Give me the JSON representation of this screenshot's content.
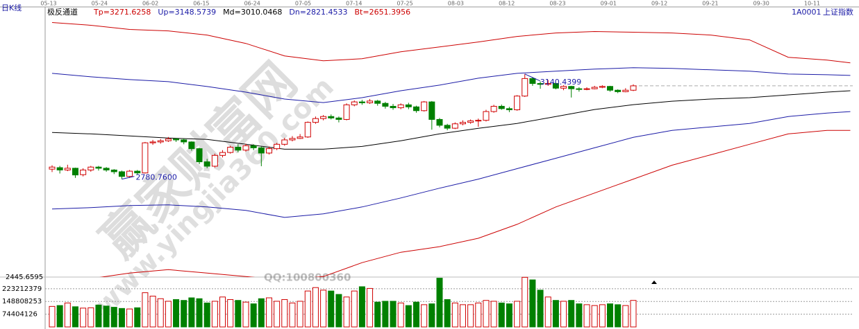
{
  "chart_data": {
    "type": "candlestick",
    "title": "日K线",
    "indicator": "极反通道",
    "code": "1A0001",
    "name": "上证指数",
    "dates": [
      "05-13",
      "05-24",
      "06-02",
      "06-15",
      "06-24",
      "07-05",
      "07-14",
      "07-25",
      "08-03",
      "08-12",
      "08-23",
      "09-01",
      "09-12",
      "09-21",
      "09-30",
      "10-11"
    ],
    "candles": [
      [
        2815,
        2822,
        2828,
        2805
      ],
      [
        2820,
        2812,
        2826,
        2800
      ],
      [
        2812,
        2818,
        2830,
        2808
      ],
      [
        2818,
        2795,
        2820,
        2785
      ],
      [
        2796,
        2812,
        2818,
        2790
      ],
      [
        2812,
        2822,
        2826,
        2806
      ],
      [
        2822,
        2818,
        2826,
        2810
      ],
      [
        2818,
        2812,
        2822,
        2806
      ],
      [
        2812,
        2806,
        2815,
        2798
      ],
      [
        2806,
        2790,
        2810,
        2780.76
      ],
      [
        2790,
        2808,
        2812,
        2785
      ],
      [
        2808,
        2802,
        2812,
        2796
      ],
      [
        2802,
        2905,
        2908,
        2800
      ],
      [
        2905,
        2908,
        2915,
        2898
      ],
      [
        2908,
        2912,
        2918,
        2902
      ],
      [
        2912,
        2918,
        2925,
        2908
      ],
      [
        2918,
        2915,
        2922,
        2908
      ],
      [
        2915,
        2908,
        2920,
        2900
      ],
      [
        2908,
        2885,
        2910,
        2878
      ],
      [
        2885,
        2840,
        2888,
        2832
      ],
      [
        2840,
        2825,
        2850,
        2818
      ],
      [
        2825,
        2862,
        2868,
        2820
      ],
      [
        2862,
        2872,
        2880,
        2855
      ],
      [
        2872,
        2890,
        2895,
        2868
      ],
      [
        2890,
        2880,
        2900,
        2872
      ],
      [
        2880,
        2895,
        2902,
        2875
      ],
      [
        2895,
        2888,
        2900,
        2880
      ],
      [
        2888,
        2870,
        2892,
        2825
      ],
      [
        2870,
        2885,
        2892,
        2865
      ],
      [
        2885,
        2900,
        2905,
        2880
      ],
      [
        2900,
        2915,
        2922,
        2895
      ],
      [
        2915,
        2920,
        2928,
        2910
      ],
      [
        2920,
        2925,
        2935,
        2918
      ],
      [
        2925,
        2975,
        2978,
        2922
      ],
      [
        2975,
        2988,
        2995,
        2970
      ],
      [
        2988,
        2995,
        3000,
        2982
      ],
      [
        2995,
        2990,
        3002,
        2985
      ],
      [
        2990,
        2985,
        2995,
        2975
      ],
      [
        2985,
        3035,
        3040,
        2982
      ],
      [
        3035,
        3045,
        3050,
        3030
      ],
      [
        3045,
        3042,
        3052,
        3035
      ],
      [
        3042,
        3048,
        3055,
        3038
      ],
      [
        3048,
        3040,
        3052,
        3032
      ],
      [
        3040,
        3030,
        3045,
        3022
      ],
      [
        3030,
        3025,
        3038,
        3018
      ],
      [
        3025,
        3035,
        3040,
        3020
      ],
      [
        3035,
        3028,
        3042,
        3020
      ],
      [
        3028,
        3015,
        3032,
        3008
      ],
      [
        3015,
        3045,
        3048,
        3012
      ],
      [
        3045,
        2985,
        3048,
        2950
      ],
      [
        2985,
        2965,
        2990,
        2958
      ],
      [
        2965,
        2955,
        2970,
        2948
      ],
      [
        2955,
        2970,
        2975,
        2952
      ],
      [
        2970,
        2975,
        2982,
        2965
      ],
      [
        2975,
        2980,
        2985,
        2970
      ],
      [
        2980,
        2982,
        2988,
        2960
      ],
      [
        2982,
        3012,
        3018,
        2978
      ],
      [
        3012,
        3030,
        3035,
        3008
      ],
      [
        3030,
        3022,
        3036,
        3018
      ],
      [
        3022,
        3018,
        3028,
        3010
      ],
      [
        3018,
        3065,
        3068,
        3015
      ],
      [
        3065,
        3125,
        3140.4399,
        3062
      ],
      [
        3125,
        3108,
        3130,
        3100
      ],
      [
        3108,
        3105,
        3115,
        3090
      ],
      [
        3105,
        3108,
        3120,
        3100
      ],
      [
        3108,
        3092,
        3112,
        3088
      ],
      [
        3092,
        3098,
        3102,
        3085
      ],
      [
        3098,
        3090,
        3100,
        3060
      ],
      [
        3090,
        3088,
        3095,
        3080
      ],
      [
        3088,
        3090,
        3095,
        3085
      ],
      [
        3090,
        3095,
        3100,
        3088
      ],
      [
        3095,
        3098,
        3102,
        3092
      ],
      [
        3098,
        3085,
        3100,
        3080
      ],
      [
        3085,
        3080,
        3088,
        3075
      ],
      [
        3080,
        3085,
        3092,
        3078
      ],
      [
        3085,
        3100,
        3105,
        3082
      ]
    ],
    "ylim": [
      2445.6595,
      3370
    ],
    "yticks": [
      2445.6595
    ],
    "annotations": [
      "3140.4399",
      "2780.7600"
    ],
    "bands": {
      "x": [
        0,
        5,
        10,
        15,
        20,
        25,
        30,
        35,
        40,
        45,
        50,
        55,
        60,
        65,
        70,
        75,
        80,
        85,
        90,
        95,
        100,
        103
      ],
      "series": [
        {
          "name": "Tp=3271.6258",
          "color": "#cc0000",
          "values": [
            3316.7,
            3307.2,
            3292.9,
            3288.1,
            3273.8,
            3245.2,
            3202.4,
            3185.7,
            3192.8,
            3216.7,
            3233.3,
            3250.0,
            3269.1,
            3281.0,
            3285.8,
            3283.4,
            3281.0,
            3273.8,
            3257.2,
            3197.6,
            3188.1,
            3178.5
          ]
        },
        {
          "name": "Up=3148.5739",
          "color": "#1a1aa6",
          "values": [
            3142.8,
            3130.9,
            3121.4,
            3114.2,
            3097.6,
            3078.5,
            3054.7,
            3042.8,
            3059.5,
            3083.3,
            3102.3,
            3126.2,
            3142.8,
            3150.0,
            3157.1,
            3161.9,
            3159.5,
            3154.7,
            3150.0,
            3140.4,
            3138.0,
            3135.7
          ]
        },
        {
          "name": "Md=3010.0468",
          "color": "#000000",
          "values": [
            2940.4,
            2935.6,
            2928.4,
            2921.3,
            2916.5,
            2899.9,
            2883.2,
            2883.2,
            2892.7,
            2911.8,
            2935.6,
            2954.6,
            2971.3,
            2995.1,
            3018.9,
            3035.6,
            3047.5,
            3054.7,
            3059.5,
            3069.0,
            3078.5,
            3083.3
          ]
        },
        {
          "name": "Dn=2821.4533",
          "color": "#1a1aa6",
          "values": [
            2678.3,
            2683.1,
            2690.3,
            2692.6,
            2685.5,
            2673.6,
            2649.7,
            2661.7,
            2685.5,
            2716.4,
            2749.8,
            2780.8,
            2816.5,
            2852.2,
            2888.0,
            2923.7,
            2947.5,
            2959.4,
            2971.3,
            2995.1,
            3007.0,
            3011.8
          ]
        },
        {
          "name": "Bt=2651.3956",
          "color": "#cc0000",
          "values": [
            2423.5,
            2440.1,
            2459.2,
            2471.1,
            2459.2,
            2447.3,
            2435.4,
            2447.3,
            2494.9,
            2530.6,
            2549.7,
            2578.3,
            2626.1,
            2685.5,
            2733.1,
            2780.8,
            2828.4,
            2864.1,
            2899.9,
            2935.6,
            2947.5,
            2947.5
          ]
        }
      ]
    },
    "volume": {
      "values": [
        120000000,
        125000000,
        140000000,
        118000000,
        110000000,
        112000000,
        128000000,
        122000000,
        115000000,
        108000000,
        105000000,
        112000000,
        200000000,
        180000000,
        165000000,
        150000000,
        160000000,
        155000000,
        170000000,
        165000000,
        140000000,
        150000000,
        175000000,
        160000000,
        155000000,
        145000000,
        135000000,
        165000000,
        170000000,
        150000000,
        160000000,
        140000000,
        150000000,
        210000000,
        230000000,
        215000000,
        210000000,
        190000000,
        175000000,
        210000000,
        235000000,
        225000000,
        145000000,
        150000000,
        150000000,
        140000000,
        125000000,
        145000000,
        130000000,
        135000000,
        285000000,
        160000000,
        140000000,
        130000000,
        130000000,
        140000000,
        155000000,
        150000000,
        140000000,
        135000000,
        150000000,
        290000000,
        275000000,
        215000000,
        175000000,
        155000000,
        150000000,
        155000000,
        135000000,
        130000000,
        125000000,
        130000000,
        135000000,
        130000000,
        125000000,
        155000000
      ],
      "ylim": [
        0,
        291500000
      ],
      "yticks": [
        74404126,
        148808253,
        223212379
      ]
    },
    "watermark": [
      "赢家财富网",
      "www.yingjia360.com",
      "QQ:100800360"
    ]
  }
}
